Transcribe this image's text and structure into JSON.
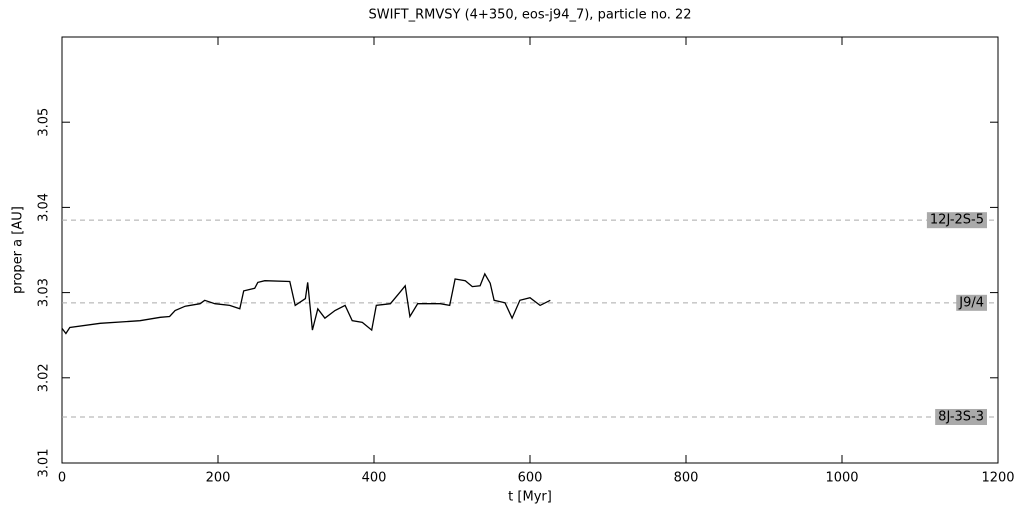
{
  "chart_data": {
    "type": "line",
    "title": "SWIFT_RMVSY (4+350, eos-j94_7), particle no. 22",
    "x_label": "t [Myr]",
    "y_label": "proper a [AU]",
    "xlim": [
      0,
      1200
    ],
    "xticks": [
      0,
      200,
      400,
      600,
      800,
      1000,
      1200
    ],
    "ylim": [
      3.01,
      3.06
    ],
    "yticks": [
      3.01,
      3.02,
      3.03,
      3.04,
      3.05
    ],
    "color": "#000000",
    "x": [
      0,
      5,
      10,
      49,
      100,
      126,
      138,
      145,
      158,
      177,
      183,
      196,
      215,
      228,
      233,
      247,
      251,
      260,
      292,
      299,
      312,
      315,
      321,
      328,
      337,
      350,
      363,
      372,
      385,
      397,
      403,
      421,
      433,
      440,
      446,
      456,
      485,
      497,
      504,
      517,
      526,
      536,
      542,
      549,
      554,
      568,
      577,
      587,
      600,
      613,
      626
    ],
    "values": [
      3.0258,
      3.0252,
      3.0259,
      3.0264,
      3.0267,
      3.0271,
      3.0272,
      3.0279,
      3.0284,
      3.0287,
      3.0291,
      3.0287,
      3.0285,
      3.0281,
      3.0302,
      3.0305,
      3.0312,
      3.0314,
      3.0313,
      3.0285,
      3.0293,
      3.0312,
      3.0256,
      3.0281,
      3.027,
      3.0279,
      3.0285,
      3.0267,
      3.0265,
      3.0256,
      3.0285,
      3.0287,
      3.03,
      3.0308,
      3.0272,
      3.0287,
      3.0287,
      3.0285,
      3.0316,
      3.0314,
      3.0307,
      3.0308,
      3.0322,
      3.0311,
      3.0291,
      3.0288,
      3.027,
      3.0291,
      3.0294,
      3.0285,
      3.0291
    ],
    "resonances": [
      {
        "label": "12J-2S-5",
        "value": 3.0385
      },
      {
        "label": "J9/4",
        "value": 3.0288
      },
      {
        "label": "8J-3S-3",
        "value": 3.0154
      }
    ]
  }
}
